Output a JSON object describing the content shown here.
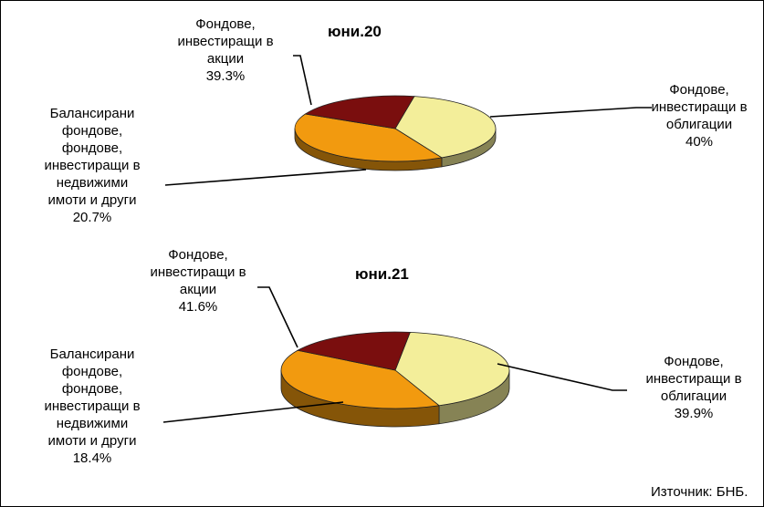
{
  "chart_data": [
    {
      "type": "pie",
      "title": "юни.20",
      "slices": [
        {
          "label": "Фондове,\nинвестиращи в\nакции",
          "value": 39.3,
          "value_label": "39.3%",
          "color": "#F3EE9A"
        },
        {
          "label": "Фондове,\nинвестиращи в\nоблигации",
          "value": 40,
          "value_label": "40%",
          "color": "#F29A0F"
        },
        {
          "label": "Балансирани\nфондове,\nфондове,\nинвестиращи в\nнедвижими\nимоти и други",
          "value": 20.7,
          "value_label": "20.7%",
          "color": "#7A0E0E"
        }
      ]
    },
    {
      "type": "pie",
      "title": "юни.21",
      "slices": [
        {
          "label": "Фондове,\nинвестиращи в\nакции",
          "value": 41.6,
          "value_label": "41.6%",
          "color": "#F3EE9A"
        },
        {
          "label": "Фондове,\nинвестиращи в\nоблигации",
          "value": 39.9,
          "value_label": "39.9%",
          "color": "#F29A0F"
        },
        {
          "label": "Балансирани\nфондове,\nфондове,\nинвестиращи в\nнедвижими\nимоти и други",
          "value": 18.4,
          "value_label": "18.4%",
          "color": "#7A0E0E"
        }
      ]
    }
  ],
  "source": "Източник: БНБ."
}
